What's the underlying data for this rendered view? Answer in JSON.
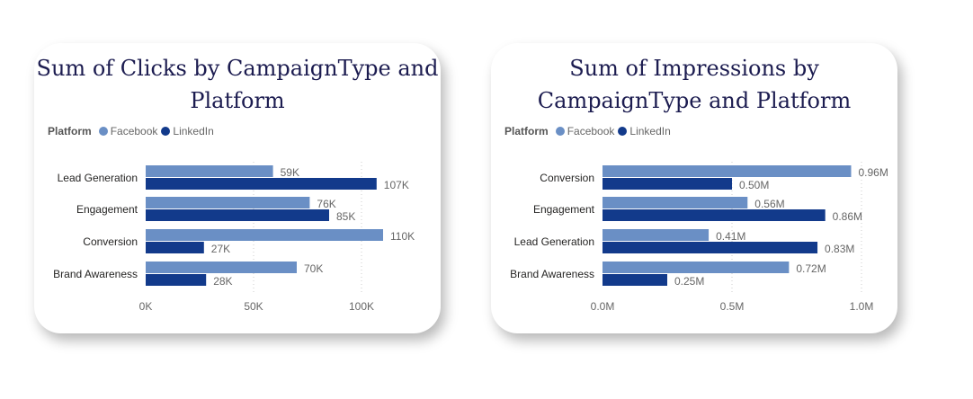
{
  "colors": {
    "facebook": "#6a8fc5",
    "linkedin": "#123a8b",
    "grid": "#cccccc",
    "label": "#666666"
  },
  "legend": {
    "title": "Platform",
    "entries": [
      "Facebook",
      "LinkedIn"
    ]
  },
  "chart_data": [
    {
      "type": "bar",
      "orientation": "horizontal",
      "title": "Sum of Clicks by CampaignType and Platform",
      "title_lines": [
        "Sum of Clicks by CampaignType and",
        "Platform"
      ],
      "categories": [
        "Lead Generation",
        "Engagement",
        "Conversion",
        "Brand Awareness"
      ],
      "series": [
        {
          "name": "Facebook",
          "values": [
            59000,
            76000,
            110000,
            70000
          ],
          "labels": [
            "59K",
            "76K",
            "110K",
            "70K"
          ]
        },
        {
          "name": "LinkedIn",
          "values": [
            107000,
            85000,
            27000,
            28000
          ],
          "labels": [
            "107K",
            "85K",
            "27K",
            "28K"
          ]
        }
      ],
      "xlim": [
        0,
        120000
      ],
      "ticks": [
        0,
        50000,
        100000
      ],
      "tick_labels": [
        "0K",
        "50K",
        "100K"
      ],
      "grid": true,
      "legend_position": "top-left"
    },
    {
      "type": "bar",
      "orientation": "horizontal",
      "title": "Sum of Impressions by CampaignType and Platform",
      "title_lines": [
        "Sum of Impressions by",
        "CampaignType and Platform"
      ],
      "categories": [
        "Conversion",
        "Engagement",
        "Lead Generation",
        "Brand Awareness"
      ],
      "series": [
        {
          "name": "Facebook",
          "values": [
            0.96,
            0.56,
            0.41,
            0.72
          ],
          "labels": [
            "0.96M",
            "0.56M",
            "0.41M",
            "0.72M"
          ]
        },
        {
          "name": "LinkedIn",
          "values": [
            0.5,
            0.86,
            0.83,
            0.25
          ],
          "labels": [
            "0.50M",
            "0.86M",
            "0.83M",
            "0.25M"
          ]
        }
      ],
      "xlim": [
        0,
        1.0
      ],
      "ticks": [
        0,
        0.5,
        1.0
      ],
      "tick_labels": [
        "0.0M",
        "0.5M",
        "1.0M"
      ],
      "grid": true,
      "legend_position": "top-left"
    }
  ]
}
